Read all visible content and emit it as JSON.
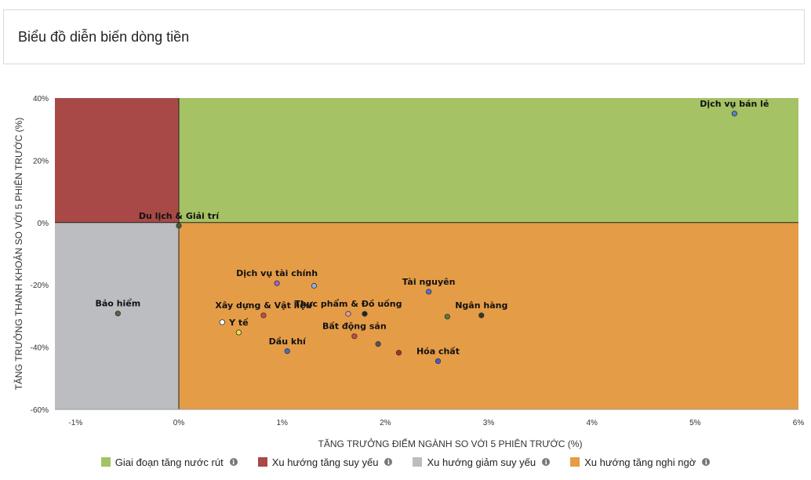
{
  "header": {
    "title": "Biểu đồ diễn biến dòng tiền"
  },
  "chart_data": {
    "type": "scatter",
    "xlabel": "TĂNG TRƯỞNG ĐIỂM NGÀNH SO VỚI 5 PHIÊN TRƯỚC (%)",
    "ylabel": "TĂNG TRƯỞNG THANH KHOẢN SO VỚI 5 PHIÊN TRƯỚC (%)",
    "xlim": [
      -1.2,
      6.0
    ],
    "ylim": [
      -60,
      40
    ],
    "x_ticks": [
      -1,
      0,
      1,
      2,
      3,
      4,
      5,
      6
    ],
    "x_tick_labels": [
      "-1%",
      "0%",
      "1%",
      "2%",
      "3%",
      "4%",
      "5%",
      "6%"
    ],
    "y_ticks": [
      40,
      20,
      0,
      -20,
      -40,
      -60
    ],
    "y_tick_labels": [
      "40%",
      "20%",
      "0%",
      "-20%",
      "-40%",
      "-60%"
    ],
    "quadrants": [
      {
        "name": "Giai đoạn tăng nước rút",
        "color": "#a5c264",
        "x": [
          0,
          6
        ],
        "y": [
          0,
          40
        ]
      },
      {
        "name": "Xu hướng tăng suy yếu",
        "color": "#a84947",
        "x": [
          -1.2,
          0
        ],
        "y": [
          0,
          40
        ]
      },
      {
        "name": "Xu hướng giảm suy yếu",
        "color": "#bcbdc0",
        "x": [
          -1.2,
          0
        ],
        "y": [
          -60,
          0
        ]
      },
      {
        "name": "Xu hướng tăng nghi ngờ",
        "color": "#e59c47",
        "x": [
          0,
          6
        ],
        "y": [
          -60,
          0
        ]
      }
    ],
    "points": [
      {
        "label": "Dịch vụ bán lẻ",
        "x": 5.38,
        "y": 35,
        "color": "#5b7fbf"
      },
      {
        "label": "Du lịch & Giải trí",
        "x": 0.0,
        "y": -1,
        "color": "#4a5a3a"
      },
      {
        "label": "Dịch vụ tài chính",
        "x": 0.95,
        "y": -19.5,
        "color": "#9c5fd6"
      },
      {
        "label": "",
        "x": 1.31,
        "y": -20.3,
        "color": "#8fb0e0"
      },
      {
        "label": "Thực phẩm & Đồ uống",
        "x": 1.64,
        "y": -29.3,
        "color": "#e8a0a0"
      },
      {
        "label": "",
        "x": 1.8,
        "y": -29.3,
        "color": "#222222"
      },
      {
        "label": "Tài nguyên",
        "x": 2.42,
        "y": -22.2,
        "color": "#5a6fd6"
      },
      {
        "label": "Ngân hàng",
        "x": 2.93,
        "y": -29.8,
        "color": "#333333"
      },
      {
        "label": "",
        "x": 2.6,
        "y": -30.2,
        "color": "#5a7a3a"
      },
      {
        "label": "Bảo hiểm",
        "x": -0.59,
        "y": -29.2,
        "color": "#55663c"
      },
      {
        "label": "Xây dựng & Vật liệu",
        "x": 0.82,
        "y": -29.8,
        "color": "#c84a4a"
      },
      {
        "label": "Y tế",
        "x": 0.58,
        "y": -35.3,
        "color": "#f0e04a"
      },
      {
        "label": "",
        "x": 0.42,
        "y": -32.0,
        "color": "#ffffff"
      },
      {
        "label": "Dầu khí",
        "x": 1.05,
        "y": -41.3,
        "color": "#4a6fc0"
      },
      {
        "label": "Bất động sản",
        "x": 1.7,
        "y": -36.5,
        "color": "#c84a4a"
      },
      {
        "label": "",
        "x": 1.93,
        "y": -39.0,
        "color": "#555555"
      },
      {
        "label": "",
        "x": 2.13,
        "y": -41.8,
        "color": "#a83030"
      },
      {
        "label": "Hóa chất",
        "x": 2.51,
        "y": -44.5,
        "color": "#4a5fc0"
      }
    ],
    "legend": [
      {
        "label": "Giai đoạn tăng nước rút",
        "color": "#a5c264"
      },
      {
        "label": "Xu hướng tăng suy yếu",
        "color": "#a84947"
      },
      {
        "label": "Xu hướng giảm suy yếu",
        "color": "#bcbdc0"
      },
      {
        "label": "Xu hướng tăng nghi ngờ",
        "color": "#e59c47"
      }
    ],
    "legend_placement": "bottom",
    "info_glyph": "i"
  }
}
